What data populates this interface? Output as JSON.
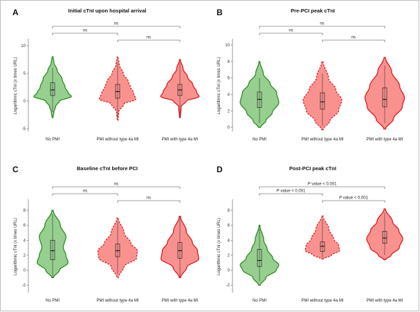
{
  "figure": {
    "palette": {
      "green_fill": "#97cf90",
      "green_line": "#2d8a24",
      "red_fill": "#f9928f",
      "red_line": "#e0191e"
    }
  },
  "chart_data": [
    {
      "type": "violin",
      "panel": "A",
      "title": "Initial cTnI upon hospital arrival",
      "ylabel": "Logarithmic cTnI (x times URL)",
      "ylim": [
        -5.5,
        11
      ],
      "yticks": [
        -5,
        0,
        5,
        10
      ],
      "tick_labels": [
        "-5",
        "0",
        "5",
        "10"
      ],
      "categories": [
        "No PMI",
        "PMI without type 4a MI",
        "PMI with type 4a MI"
      ],
      "series": [
        {
          "name": "No PMI",
          "style": "green-solid",
          "min": -3,
          "max": 8,
          "q1": 1,
          "median": 2,
          "q3": 3.3,
          "whisker_low": -2,
          "whisker_high": 6,
          "density": [
            [
              -3,
              0.02
            ],
            [
              -2,
              0.06
            ],
            [
              -1,
              0.14
            ],
            [
              0,
              0.32
            ],
            [
              0.8,
              0.88
            ],
            [
              1.5,
              0.72
            ],
            [
              2.5,
              0.58
            ],
            [
              4,
              0.44
            ],
            [
              5.5,
              0.22
            ],
            [
              7,
              0.06
            ],
            [
              8,
              0.02
            ]
          ]
        },
        {
          "name": "PMI without type 4a MI",
          "style": "red-dashed",
          "min": -3.5,
          "max": 8,
          "q1": 0.5,
          "median": 1.7,
          "q3": 3,
          "whisker_low": -3,
          "whisker_high": 7,
          "density": [
            [
              -3.5,
              0.02
            ],
            [
              -2,
              0.05
            ],
            [
              -0.5,
              0.3
            ],
            [
              0.3,
              0.85
            ],
            [
              1.5,
              0.74
            ],
            [
              2.5,
              0.6
            ],
            [
              3.5,
              0.5
            ],
            [
              5,
              0.26
            ],
            [
              6.5,
              0.08
            ],
            [
              8,
              0.02
            ]
          ]
        },
        {
          "name": "PMI with type 4a MI",
          "style": "red-solid",
          "min": -3,
          "max": 7.5,
          "q1": 1,
          "median": 2,
          "q3": 3,
          "whisker_low": -3,
          "whisker_high": 7,
          "density": [
            [
              -3,
              0.02
            ],
            [
              -1,
              0.06
            ],
            [
              0,
              0.3
            ],
            [
              0.8,
              0.9
            ],
            [
              1.6,
              0.78
            ],
            [
              3,
              0.6
            ],
            [
              4.3,
              0.36
            ],
            [
              5.8,
              0.15
            ],
            [
              7.5,
              0.02
            ]
          ]
        }
      ],
      "comparisons": [
        {
          "groups": [
            "No PMI",
            "PMI with type 4a MI"
          ],
          "label": "ns"
        },
        {
          "groups": [
            "No PMI",
            "PMI without type 4a MI"
          ],
          "label": "ns"
        },
        {
          "groups": [
            "PMI without type 4a MI",
            "PMI with type 4a MI"
          ],
          "label": "ns"
        }
      ]
    },
    {
      "type": "violin",
      "panel": "B",
      "title": "Pre-PCI peak cTnI",
      "ylabel": "Logarithmic cTnI (x times URL)",
      "ylim": [
        -0.5,
        10.6
      ],
      "yticks": [
        0,
        2,
        4,
        6,
        8,
        10
      ],
      "tick_labels": [
        "0",
        "2",
        "4",
        "6",
        "8",
        "10"
      ],
      "categories": [
        "No PMI",
        "PMI without type 4a MI",
        "PMI with type 4a MI"
      ],
      "series": [
        {
          "name": "No PMI",
          "style": "green-solid",
          "min": 0,
          "max": 8,
          "q1": 2.4,
          "median": 3.4,
          "q3": 4.3,
          "whisker_low": 0.5,
          "whisker_high": 6,
          "density": [
            [
              0,
              0.05
            ],
            [
              0.8,
              0.3
            ],
            [
              1.8,
              0.6
            ],
            [
              3,
              0.9
            ],
            [
              4.2,
              0.8
            ],
            [
              5.3,
              0.5
            ],
            [
              6.5,
              0.18
            ],
            [
              8,
              0.02
            ]
          ]
        },
        {
          "name": "PMI without type 4a MI",
          "style": "red-dashed",
          "min": -0.3,
          "max": 8,
          "q1": 2.2,
          "median": 3.1,
          "q3": 4.2,
          "whisker_low": 0.2,
          "whisker_high": 6.5,
          "density": [
            [
              -0.3,
              0.03
            ],
            [
              0.8,
              0.35
            ],
            [
              2,
              0.75
            ],
            [
              3.3,
              0.9
            ],
            [
              4.6,
              0.62
            ],
            [
              6,
              0.28
            ],
            [
              8,
              0.03
            ]
          ]
        },
        {
          "name": "PMI with type 4a MI",
          "style": "red-solid",
          "min": -0.2,
          "max": 8.5,
          "q1": 2.5,
          "median": 3.4,
          "q3": 4.8,
          "whisker_low": 0.5,
          "whisker_high": 7.5,
          "density": [
            [
              -0.2,
              0.04
            ],
            [
              1,
              0.4
            ],
            [
              2.5,
              0.82
            ],
            [
              3.6,
              0.92
            ],
            [
              5,
              0.7
            ],
            [
              6.8,
              0.32
            ],
            [
              8.5,
              0.03
            ]
          ]
        }
      ],
      "comparisons": [
        {
          "groups": [
            "No PMI",
            "PMI with type 4a MI"
          ],
          "label": "ns"
        },
        {
          "groups": [
            "No PMI",
            "PMI without type 4a MI"
          ],
          "label": "ns"
        },
        {
          "groups": [
            "PMI without type 4a MI",
            "PMI with type 4a MI"
          ],
          "label": "ns"
        }
      ]
    },
    {
      "type": "violin",
      "panel": "C",
      "title": "Baseline cTnI before PCI",
      "ylabel": "Logarithmic cTnI (x times URL)",
      "ylim": [
        -3,
        9.3
      ],
      "yticks": [
        -2,
        0,
        2,
        4,
        6,
        8
      ],
      "tick_labels": [
        "-2",
        "0",
        "2",
        "4",
        "6",
        "8"
      ],
      "categories": [
        "No PMI",
        "PMI without type 4a MI",
        "PMI with type 4a MI"
      ],
      "series": [
        {
          "name": "No PMI",
          "style": "green-solid",
          "min": -1,
          "max": 8,
          "q1": 1.4,
          "median": 2.6,
          "q3": 4,
          "whisker_low": -1,
          "whisker_high": 7.5,
          "density": [
            [
              -1,
              0.04
            ],
            [
              0,
              0.32
            ],
            [
              1,
              0.72
            ],
            [
              2,
              0.62
            ],
            [
              3,
              0.5
            ],
            [
              4.5,
              0.62
            ],
            [
              6,
              0.36
            ],
            [
              8,
              0.03
            ]
          ]
        },
        {
          "name": "PMI without type 4a MI",
          "style": "red-dashed",
          "min": -1,
          "max": 7,
          "q1": 1.8,
          "median": 2.6,
          "q3": 3.5,
          "whisker_low": -0.5,
          "whisker_high": 6.5,
          "density": [
            [
              -1,
              0.03
            ],
            [
              0.5,
              0.3
            ],
            [
              1.6,
              0.88
            ],
            [
              2.6,
              0.92
            ],
            [
              3.6,
              0.62
            ],
            [
              5,
              0.3
            ],
            [
              7,
              0.03
            ]
          ]
        },
        {
          "name": "PMI with type 4a MI",
          "style": "red-solid",
          "min": -1,
          "max": 7.2,
          "q1": 1.6,
          "median": 2.6,
          "q3": 3.7,
          "whisker_low": -1,
          "whisker_high": 7,
          "density": [
            [
              -1,
              0.03
            ],
            [
              0.4,
              0.32
            ],
            [
              1.5,
              0.88
            ],
            [
              2.6,
              0.82
            ],
            [
              3.7,
              0.58
            ],
            [
              5.2,
              0.3
            ],
            [
              7.2,
              0.03
            ]
          ]
        }
      ],
      "comparisons": [
        {
          "groups": [
            "No PMI",
            "PMI with type 4a MI"
          ],
          "label": "ns"
        },
        {
          "groups": [
            "No PMI",
            "PMI without type 4a MI"
          ],
          "label": "ns"
        },
        {
          "groups": [
            "PMI without type 4a MI",
            "PMI with type 4a MI"
          ],
          "label": "ns"
        }
      ]
    },
    {
      "type": "violin",
      "panel": "D",
      "title": "Post-PCI peak cTnI",
      "ylabel": "Logarithmic cTnI (x times URL)",
      "ylim": [
        -3,
        9.3
      ],
      "yticks": [
        -2,
        0,
        2,
        4,
        6,
        8
      ],
      "tick_labels": [
        "-2",
        "0",
        "2",
        "4",
        "6",
        "8"
      ],
      "categories": [
        "No PMI",
        "PMI without type 4a MI",
        "PMI with type 4a MI"
      ],
      "series": [
        {
          "name": "No PMI",
          "style": "green-solid",
          "min": -2,
          "max": 6,
          "q1": 0.5,
          "median": 1.3,
          "q3": 2.8,
          "whisker_low": -1.5,
          "whisker_high": 5.5,
          "density": [
            [
              -2,
              0.04
            ],
            [
              -1,
              0.3
            ],
            [
              0,
              0.78
            ],
            [
              0.7,
              0.9
            ],
            [
              1.6,
              0.62
            ],
            [
              2.8,
              0.36
            ],
            [
              4,
              0.2
            ],
            [
              6,
              0.02
            ]
          ]
        },
        {
          "name": "PMI without type 4a MI",
          "style": "red-dashed",
          "min": 1.5,
          "max": 7.3,
          "q1": 2.5,
          "median": 3.2,
          "q3": 3.8,
          "whisker_low": 1.7,
          "whisker_high": 6.8,
          "density": [
            [
              1.5,
              0.04
            ],
            [
              2,
              0.42
            ],
            [
              2.6,
              0.8
            ],
            [
              3.3,
              0.76
            ],
            [
              4.2,
              0.52
            ],
            [
              5.5,
              0.3
            ],
            [
              7.3,
              0.02
            ]
          ]
        },
        {
          "name": "PMI with type 4a MI",
          "style": "red-solid",
          "min": 1.4,
          "max": 8.2,
          "q1": 3.6,
          "median": 4.3,
          "q3": 5.2,
          "whisker_low": 2,
          "whisker_high": 7.7,
          "density": [
            [
              1.4,
              0.04
            ],
            [
              2,
              0.3
            ],
            [
              3,
              0.68
            ],
            [
              4.2,
              0.84
            ],
            [
              5.3,
              0.66
            ],
            [
              6.5,
              0.36
            ],
            [
              8.2,
              0.03
            ]
          ]
        }
      ],
      "comparisons": [
        {
          "groups": [
            "No PMI",
            "PMI with type 4a MI"
          ],
          "label": "P value < 0.001"
        },
        {
          "groups": [
            "No PMI",
            "PMI without type 4a MI"
          ],
          "label": "P value < 0.001"
        },
        {
          "groups": [
            "PMI without type 4a MI",
            "PMI with type 4a MI"
          ],
          "label": "P value < 0.001"
        }
      ]
    }
  ]
}
